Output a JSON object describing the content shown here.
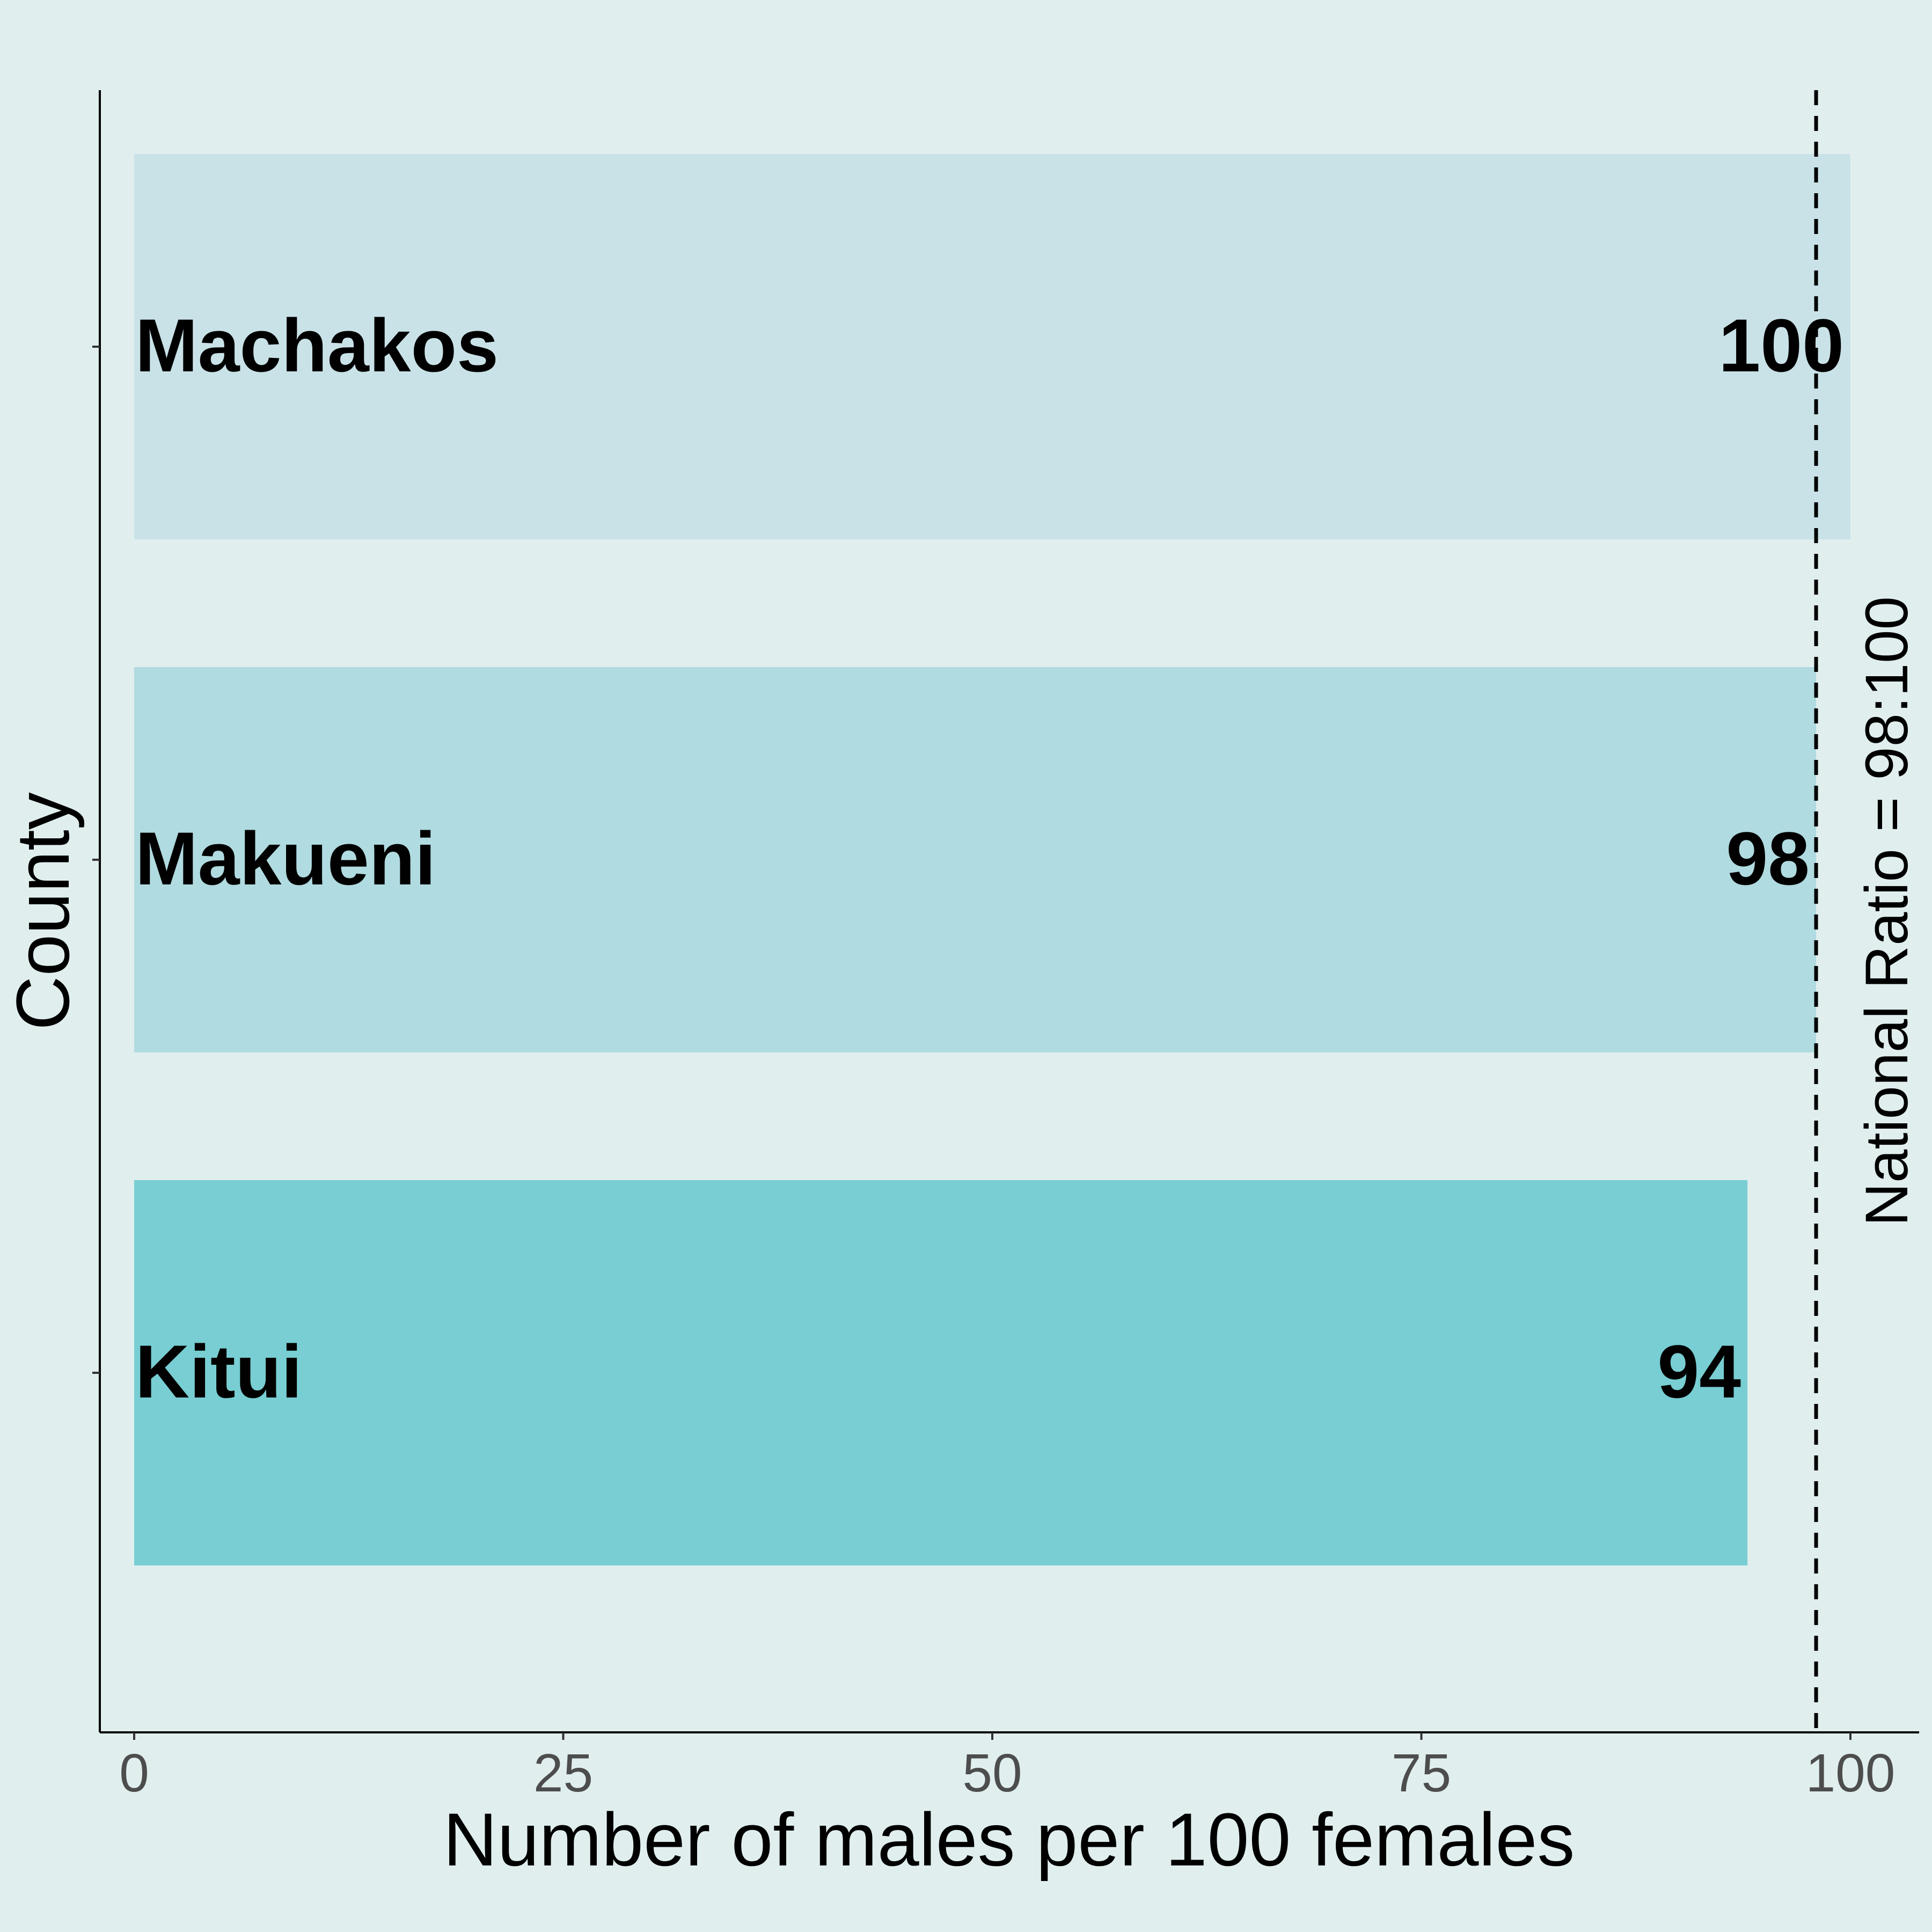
{
  "chart_data": {
    "type": "bar",
    "orientation": "horizontal",
    "categories": [
      "Machakos",
      "Makueni",
      "Kitui"
    ],
    "values": [
      100,
      98,
      94
    ],
    "bar_labels": [
      "100",
      "98",
      "94"
    ],
    "bar_colors": [
      "#C9E2E7",
      "#B0DBE0",
      "#78CED2"
    ],
    "xlabel": "Number of males per 100 females",
    "ylabel": "County",
    "xlim": [
      0,
      100
    ],
    "xticks": [
      0,
      25,
      50,
      75,
      100
    ],
    "xtick_labels": [
      "0",
      "25",
      "50",
      "75",
      "100"
    ],
    "reference_line": {
      "value": 98,
      "style": "dashed",
      "label": "National Ratio = 98:100"
    },
    "background": "#E0EEEE",
    "grid": false,
    "legend": "none"
  }
}
